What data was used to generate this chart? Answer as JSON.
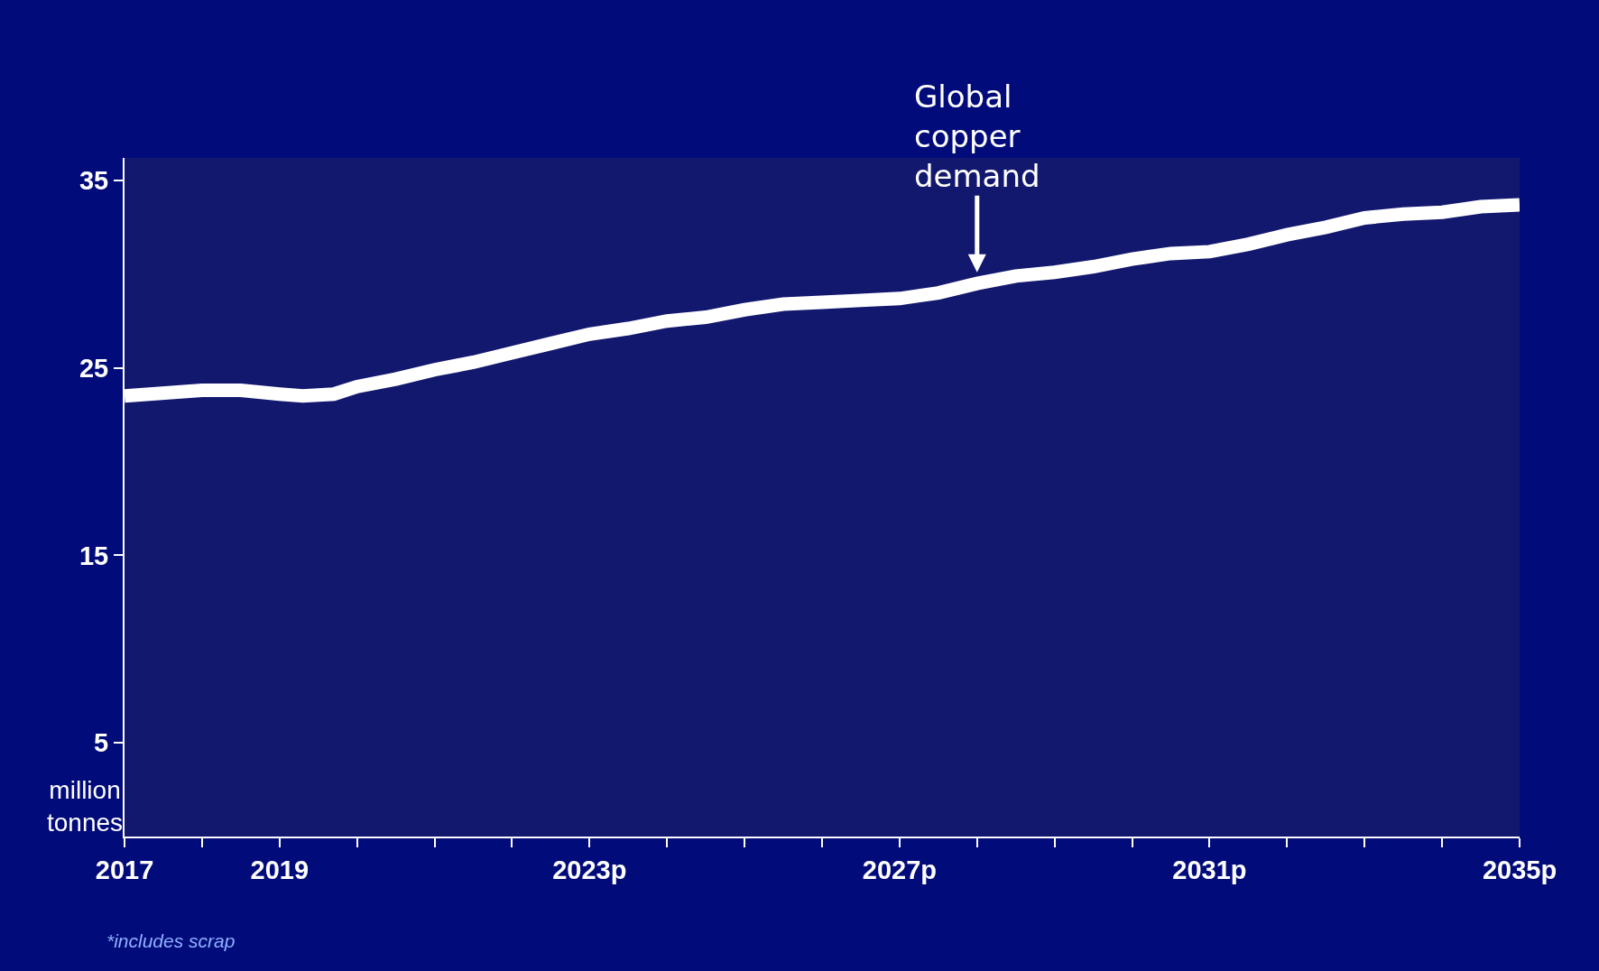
{
  "chart_data": {
    "type": "line",
    "ylabel": "million\ntonnes",
    "annotations": [
      {
        "text": "Global\ncopper\ndemand",
        "x": 2028,
        "y": 30.1
      },
      "*includes scrap"
    ],
    "x": [
      2017,
      2018,
      2018.5,
      2019,
      2019.3,
      2019.7,
      2020,
      2020.5,
      2021,
      2021.5,
      2022,
      2022.5,
      2023,
      2023.5,
      2024,
      2024.5,
      2025,
      2025.5,
      2026,
      2026.5,
      2027,
      2027.5,
      2028,
      2028.5,
      2029,
      2029.5,
      2030,
      2030.5,
      2031,
      2031.5,
      2032,
      2032.5,
      2033,
      2033.5,
      2034,
      2034.5,
      2035
    ],
    "series": [
      {
        "color": "#ffffff",
        "values": [
          23.5,
          23.8,
          23.8,
          23.6,
          23.5,
          23.6,
          24.0,
          24.4,
          24.9,
          25.3,
          25.8,
          26.3,
          26.8,
          27.1,
          27.5,
          27.7,
          28.1,
          28.4,
          28.5,
          28.6,
          28.7,
          29.0,
          29.5,
          29.9,
          30.1,
          30.4,
          30.8,
          31.1,
          31.2,
          31.6,
          32.1,
          32.5,
          33.0,
          33.2,
          33.3,
          33.6,
          33.7
        ]
      }
    ],
    "xlim": [
      2017,
      2035
    ],
    "ylim": [
      0,
      36.2
    ],
    "xticks": [
      2017,
      {
        "value": 2018,
        "label": null
      },
      2019,
      {
        "value": 2020,
        "label": null
      },
      {
        "value": 2021,
        "label": null
      },
      {
        "value": 2022,
        "label": null
      },
      {
        "value": 2023,
        "label": "2023p"
      },
      {
        "value": 2024,
        "label": null
      },
      {
        "value": 2025,
        "label": null
      },
      {
        "value": 2026,
        "label": null
      },
      {
        "value": 2027,
        "label": "2027p"
      },
      {
        "value": 2028,
        "label": null
      },
      {
        "value": 2029,
        "label": null
      },
      {
        "value": 2030,
        "label": null
      },
      {
        "value": 2031,
        "label": "2031p"
      },
      {
        "value": 2032,
        "label": null
      },
      {
        "value": 2033,
        "label": null
      },
      {
        "value": 2034,
        "label": null
      },
      {
        "value": 2035,
        "label": "2035p"
      }
    ],
    "yticks": [
      5,
      15,
      25,
      35
    ],
    "grid": false,
    "marker": "none",
    "line_style": "solid"
  }
}
